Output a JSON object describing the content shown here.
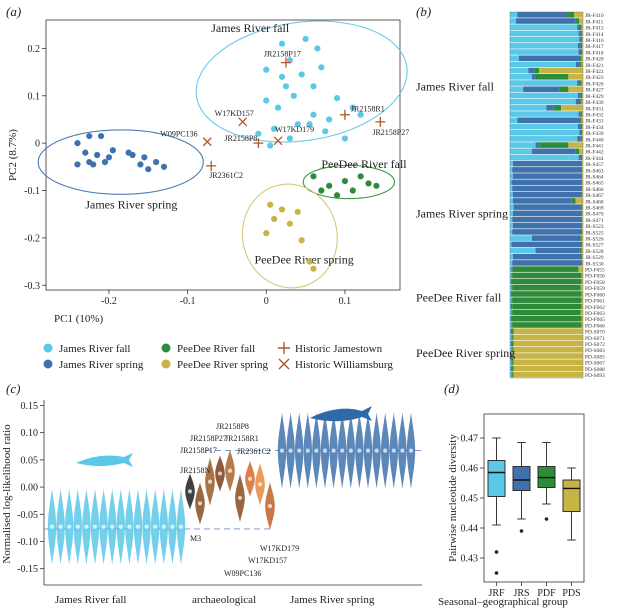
{
  "panel_labels": {
    "a": "(a)",
    "b": "(b)",
    "c": "(c)",
    "d": "(d)"
  },
  "colors": {
    "jrf": "#5bc8e8",
    "jrs": "#3f72ad",
    "pdf": "#2e8b3a",
    "pds": "#c8b445",
    "historic": "#b5542a",
    "ellipse_jrf": "#6cc9ea",
    "ellipse_jrs": "#4a7bb5",
    "ellipse_pdf": "#3a9a40",
    "ellipse_pds": "#d7c678",
    "violin_arch": "#8a4a1e"
  },
  "chart_data": [
    {
      "panel": "a",
      "type": "scatter",
      "xlabel": "PC1 (10%)",
      "ylabel": "PC2 (8.7%)",
      "xlim": [
        -0.28,
        0.17
      ],
      "ylim": [
        -0.31,
        0.26
      ],
      "xticks": [
        "-0.2",
        "-0.1",
        "0",
        "0.1"
      ],
      "xtick_values": [
        -0.2,
        -0.1,
        0,
        0.1
      ],
      "yticks": [
        "0.2",
        "0.1",
        "0",
        "-0.1",
        "-0.2",
        "-0.3"
      ],
      "ytick_values": [
        0.2,
        0.1,
        0,
        -0.1,
        -0.2,
        -0.3
      ],
      "group_labels": [
        {
          "text": "James River fall",
          "x": -0.07,
          "y": 0.235
        },
        {
          "text": "James River spring",
          "x": -0.23,
          "y": -0.138
        },
        {
          "text": "PeeDee River fall",
          "x": 0.07,
          "y": -0.052
        },
        {
          "text": "PeeDee River spring",
          "x": -0.015,
          "y": -0.254
        }
      ],
      "ellipses": [
        {
          "group": "jrf",
          "cx": 0.045,
          "cy": 0.13,
          "rx": 0.135,
          "ry": 0.125,
          "angle": -8
        },
        {
          "group": "jrs",
          "cx": -0.185,
          "cy": -0.04,
          "rx": 0.105,
          "ry": 0.068,
          "angle": 0
        },
        {
          "group": "pdf",
          "cx": 0.105,
          "cy": -0.082,
          "rx": 0.058,
          "ry": 0.035,
          "angle": 0
        },
        {
          "group": "pds",
          "cx": 0.03,
          "cy": -0.196,
          "rx": 0.06,
          "ry": 0.11,
          "angle": -12
        }
      ],
      "series": [
        {
          "name": "James River fall",
          "key": "jrf",
          "marker": "dot",
          "x": [
            0.02,
            0.05,
            0.065,
            0.03,
            0.0,
            0.02,
            0.045,
            0.07,
            0.025,
            0.06,
            0.09,
            0.035,
            0.0,
            0.015,
            0.06,
            0.08,
            0.11,
            0.12,
            0.04,
            0.055,
            0.01,
            -0.01,
            0.03,
            0.075,
            0.1,
            0.005
          ],
          "y": [
            0.21,
            0.22,
            0.2,
            0.175,
            0.155,
            0.14,
            0.145,
            0.16,
            0.12,
            0.12,
            0.095,
            0.1,
            0.09,
            0.075,
            0.06,
            0.05,
            0.075,
            0.06,
            0.04,
            0.04,
            0.03,
            0.02,
            0.01,
            0.025,
            0.01,
            -0.005
          ]
        },
        {
          "name": "James River spring",
          "key": "jrs",
          "marker": "dot",
          "x": [
            -0.24,
            -0.225,
            -0.21,
            -0.23,
            -0.215,
            -0.2,
            -0.22,
            -0.195,
            -0.225,
            -0.205,
            -0.17,
            -0.155,
            -0.16,
            -0.14,
            -0.13,
            -0.15,
            -0.175,
            -0.24
          ],
          "y": [
            0.0,
            0.015,
            0.015,
            -0.02,
            -0.025,
            -0.03,
            -0.045,
            -0.015,
            -0.04,
            -0.04,
            -0.025,
            -0.03,
            -0.045,
            -0.04,
            -0.05,
            -0.055,
            -0.02,
            -0.045
          ]
        },
        {
          "name": "PeeDee River fall",
          "key": "pdf",
          "marker": "dot",
          "x": [
            0.06,
            0.08,
            0.1,
            0.12,
            0.14,
            0.09,
            0.11,
            0.13,
            0.07
          ],
          "y": [
            -0.07,
            -0.09,
            -0.08,
            -0.07,
            -0.09,
            -0.11,
            -0.1,
            -0.085,
            -0.1
          ]
        },
        {
          "name": "PeeDee River spring",
          "key": "pds",
          "marker": "dot",
          "x": [
            0.005,
            0.02,
            0.04,
            0.01,
            0.03,
            0.0,
            0.045,
            0.055,
            0.06
          ],
          "y": [
            -0.13,
            -0.14,
            -0.145,
            -0.16,
            -0.17,
            -0.19,
            -0.205,
            -0.25,
            -0.265
          ]
        },
        {
          "name": "Historic Jamestown",
          "key": "hj",
          "marker": "plus",
          "points": [
            {
              "label": "JR2158P17",
              "x": 0.025,
              "y": 0.17
            },
            {
              "label": "JR2158R1",
              "x": 0.1,
              "y": 0.06
            },
            {
              "label": "JR2158P27",
              "x": 0.145,
              "y": 0.045
            },
            {
              "label": "JR2158P8",
              "x": -0.01,
              "y": 0.0
            },
            {
              "label": "JR2361C2",
              "x": -0.07,
              "y": -0.048
            }
          ]
        },
        {
          "name": "Historic Williamsburg",
          "key": "hw",
          "marker": "cross",
          "points": [
            {
              "label": "W17KD157",
              "x": -0.03,
              "y": 0.045
            },
            {
              "label": "W17KD179",
              "x": 0.015,
              "y": 0.005
            },
            {
              "label": "W09PC136",
              "x": -0.075,
              "y": 0.003
            }
          ]
        }
      ],
      "legend": [
        {
          "label": "James River fall",
          "key": "jrf",
          "marker": "dot"
        },
        {
          "label": "PeeDee River fall",
          "key": "pdf",
          "marker": "dot"
        },
        {
          "label": "Historic Jamestown",
          "key": "hj",
          "marker": "plus"
        },
        {
          "label": "James River spring",
          "key": "jrs",
          "marker": "dot"
        },
        {
          "label": "PeeDee River spring",
          "key": "pds",
          "marker": "dot"
        },
        {
          "label": "Historic Williamsburg",
          "key": "hw",
          "marker": "cross"
        }
      ]
    },
    {
      "panel": "b",
      "type": "bar",
      "orientation": "horizontal-stacked",
      "components": [
        "jrf",
        "jrs",
        "pdf",
        "pds"
      ],
      "group_labels": [
        {
          "text": "James River fall",
          "rows": [
            0,
            21
          ]
        },
        {
          "text": "James River spring",
          "rows": [
            22,
            40
          ]
        },
        {
          "text": "PeeDee River fall",
          "rows": [
            41,
            49
          ]
        },
        {
          "text": "PeeDee River spring",
          "rows": [
            50,
            57
          ]
        }
      ],
      "samples": [
        "JR-F410",
        "JR-F411",
        "JR-F413",
        "JR-F414",
        "JR-F416",
        "JR-F417",
        "JR-F418",
        "JR-F420",
        "JR-F421",
        "JR-F422",
        "JR-F423",
        "JR-F426",
        "JR-F427",
        "JR-F429",
        "JR-F430",
        "JR-F431",
        "JR-F432",
        "JR-F433",
        "JR-F434",
        "JR-F439",
        "JR-F440",
        "JR-F441",
        "JR-F442",
        "JR-F444",
        "JR-S457",
        "JR-S463",
        "JR-S464",
        "JR-S465",
        "JR-S466",
        "JR-S467",
        "JR-S468",
        "JR-S469",
        "JR-S470",
        "JR-S471",
        "JR-S523",
        "JR-S525",
        "JR-S526",
        "JR-S527",
        "JR-S528",
        "JR-S529",
        "JR-S530",
        "PD-F055",
        "PD-F056",
        "PD-F058",
        "PD-F059",
        "PD-F060",
        "PD-F061",
        "PD-F062",
        "PD-F063",
        "PD-F065",
        "PD-F066",
        "PD-S070",
        "PD-S071",
        "PD-S072",
        "PD-S083",
        "PD-S085",
        "PD-S067",
        "PD-S088",
        "PD-S093"
      ],
      "proportions": [
        [
          0.1,
          0.68,
          0.1,
          0.12
        ],
        [
          0.08,
          0.82,
          0.05,
          0.05
        ],
        [
          0.92,
          0.04,
          0.02,
          0.02
        ],
        [
          0.94,
          0.03,
          0.02,
          0.01
        ],
        [
          0.95,
          0.03,
          0.01,
          0.01
        ],
        [
          0.93,
          0.04,
          0.02,
          0.01
        ],
        [
          0.94,
          0.04,
          0.01,
          0.01
        ],
        [
          0.12,
          0.84,
          0.02,
          0.02
        ],
        [
          0.9,
          0.05,
          0.03,
          0.02
        ],
        [
          0.25,
          0.08,
          0.07,
          0.6
        ],
        [
          0.3,
          0.05,
          0.45,
          0.2
        ],
        [
          0.92,
          0.04,
          0.02,
          0.02
        ],
        [
          0.18,
          0.5,
          0.12,
          0.2
        ],
        [
          0.93,
          0.04,
          0.02,
          0.01
        ],
        [
          0.9,
          0.06,
          0.02,
          0.02
        ],
        [
          0.5,
          0.1,
          0.1,
          0.3
        ],
        [
          0.94,
          0.03,
          0.02,
          0.01
        ],
        [
          0.1,
          0.86,
          0.02,
          0.02
        ],
        [
          0.93,
          0.04,
          0.02,
          0.01
        ],
        [
          0.95,
          0.03,
          0.01,
          0.01
        ],
        [
          0.92,
          0.05,
          0.02,
          0.01
        ],
        [
          0.35,
          0.05,
          0.4,
          0.2
        ],
        [
          0.3,
          0.6,
          0.05,
          0.05
        ],
        [
          0.94,
          0.03,
          0.02,
          0.01
        ],
        [
          0.04,
          0.94,
          0.01,
          0.01
        ],
        [
          0.03,
          0.95,
          0.01,
          0.01
        ],
        [
          0.04,
          0.94,
          0.01,
          0.01
        ],
        [
          0.02,
          0.96,
          0.01,
          0.01
        ],
        [
          0.03,
          0.95,
          0.01,
          0.01
        ],
        [
          0.04,
          0.94,
          0.01,
          0.01
        ],
        [
          0.04,
          0.8,
          0.06,
          0.1
        ],
        [
          0.05,
          0.92,
          0.02,
          0.01
        ],
        [
          0.04,
          0.94,
          0.01,
          0.01
        ],
        [
          0.03,
          0.95,
          0.01,
          0.01
        ],
        [
          0.04,
          0.94,
          0.01,
          0.01
        ],
        [
          0.03,
          0.95,
          0.01,
          0.01
        ],
        [
          0.3,
          0.66,
          0.02,
          0.02
        ],
        [
          0.02,
          0.96,
          0.01,
          0.01
        ],
        [
          0.35,
          0.6,
          0.03,
          0.02
        ],
        [
          0.04,
          0.94,
          0.01,
          0.01
        ],
        [
          0.03,
          0.95,
          0.01,
          0.01
        ],
        [
          0.02,
          0.02,
          0.9,
          0.06
        ],
        [
          0.02,
          0.01,
          0.95,
          0.02
        ],
        [
          0.01,
          0.01,
          0.96,
          0.02
        ],
        [
          0.02,
          0.01,
          0.94,
          0.03
        ],
        [
          0.01,
          0.01,
          0.96,
          0.02
        ],
        [
          0.02,
          0.01,
          0.95,
          0.02
        ],
        [
          0.01,
          0.02,
          0.95,
          0.02
        ],
        [
          0.02,
          0.01,
          0.94,
          0.03
        ],
        [
          0.01,
          0.01,
          0.96,
          0.02
        ],
        [
          0.02,
          0.01,
          0.95,
          0.02
        ],
        [
          0.01,
          0.01,
          0.03,
          0.95
        ],
        [
          0.02,
          0.01,
          0.02,
          0.95
        ],
        [
          0.01,
          0.01,
          0.03,
          0.95
        ],
        [
          0.02,
          0.01,
          0.02,
          0.95
        ],
        [
          0.01,
          0.02,
          0.02,
          0.95
        ],
        [
          0.02,
          0.01,
          0.02,
          0.95
        ],
        [
          0.01,
          0.01,
          0.03,
          0.95
        ],
        [
          0.02,
          0.01,
          0.02,
          0.95
        ]
      ]
    },
    {
      "panel": "c",
      "type": "violin",
      "ylabel": "Normalised log-likelihood ratio",
      "ylim": [
        -0.18,
        0.16
      ],
      "yticks": [
        "0.15",
        "0.10",
        "0.05",
        "0.00",
        "-0.05",
        "-0.10",
        "-0.15"
      ],
      "ytick_values": [
        0.15,
        0.1,
        0.05,
        0.0,
        -0.05,
        -0.1,
        -0.15
      ],
      "reference_lines": [
        0.067,
        -0.077
      ],
      "group_labels": [
        "James River fall",
        "archaeological",
        "James River spring"
      ],
      "groups": [
        {
          "key": "jrf",
          "count": 16,
          "median": -0.073
        },
        {
          "key": "arch",
          "count": 9,
          "medians": [
            -0.008,
            -0.03,
            0.01,
            0.025,
            0.03,
            -0.02,
            0.015,
            0.005,
            -0.035
          ]
        },
        {
          "key": "jrs",
          "count": 16,
          "median": 0.067
        }
      ],
      "annotations": [
        "JR2158P8",
        "JR2158P27",
        "JR2158R1",
        "JR2158P17",
        "JR2361C2",
        "JR2158N",
        "M3",
        "W17KD179",
        "W17KD157",
        "W09PC136"
      ]
    },
    {
      "panel": "d",
      "type": "box",
      "xlabel": "Seasonal–geographical group",
      "ylabel": "Pairwise nucleotide diversity",
      "ylim": [
        0.422,
        0.478
      ],
      "yticks": [
        "0.47",
        "0.46",
        "0.45",
        "0.44",
        "0.43"
      ],
      "ytick_values": [
        0.47,
        0.46,
        0.45,
        0.44,
        0.43
      ],
      "categories": [
        "JRF",
        "JRS",
        "PDF",
        "PDS"
      ],
      "boxes": [
        {
          "key": "jrf",
          "min": 0.441,
          "q1": 0.4505,
          "median": 0.4585,
          "q3": 0.4625,
          "max": 0.47,
          "outliers": [
            0.432,
            0.425
          ]
        },
        {
          "key": "jrs",
          "min": 0.443,
          "q1": 0.4525,
          "median": 0.456,
          "q3": 0.4605,
          "max": 0.4685,
          "outliers": [
            0.439
          ]
        },
        {
          "key": "pdf",
          "min": 0.448,
          "q1": 0.4535,
          "median": 0.4568,
          "q3": 0.4605,
          "max": 0.4685,
          "outliers": [
            0.443
          ]
        },
        {
          "key": "pds",
          "min": 0.436,
          "q1": 0.4455,
          "median": 0.4532,
          "q3": 0.456,
          "max": 0.46,
          "outliers": []
        }
      ]
    }
  ]
}
